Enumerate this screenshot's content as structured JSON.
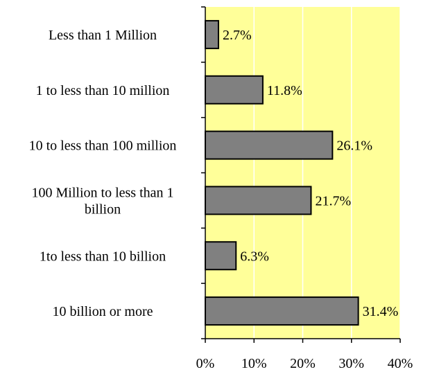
{
  "chart_data": {
    "type": "bar",
    "orientation": "horizontal",
    "categories": [
      "Less than 1 Million",
      "1 to less than 10 million",
      "10 to less than 100 million",
      "100 Million to less than 1 billion",
      "1to less than 10 billion",
      "10 billion or more"
    ],
    "category_lines": [
      [
        "Less than 1 Million"
      ],
      [
        "1 to less than 10 million"
      ],
      [
        "10 to less than 100 million"
      ],
      [
        "100 Million to less than 1",
        "billion"
      ],
      [
        "1to less than 10 billion"
      ],
      [
        "10 billion or more"
      ]
    ],
    "values": [
      2.7,
      11.8,
      26.1,
      21.7,
      6.3,
      31.4
    ],
    "value_labels": [
      "2.7%",
      "11.8%",
      "26.1%",
      "21.7%",
      "6.3%",
      "31.4%"
    ],
    "xlim": [
      0,
      40
    ],
    "x_ticks": [
      0,
      10,
      20,
      30,
      40
    ],
    "x_tick_labels": [
      "0%",
      "10%",
      "20%",
      "30%",
      "40%"
    ],
    "title": "",
    "xlabel": "",
    "ylabel": "",
    "grid": true,
    "legend": "none",
    "colors": {
      "plot_background": "#FFFF99",
      "bar_fill": "#808080",
      "bar_stroke": "#000000",
      "gridline": "#FFFFFF",
      "axis": "#000000"
    }
  }
}
